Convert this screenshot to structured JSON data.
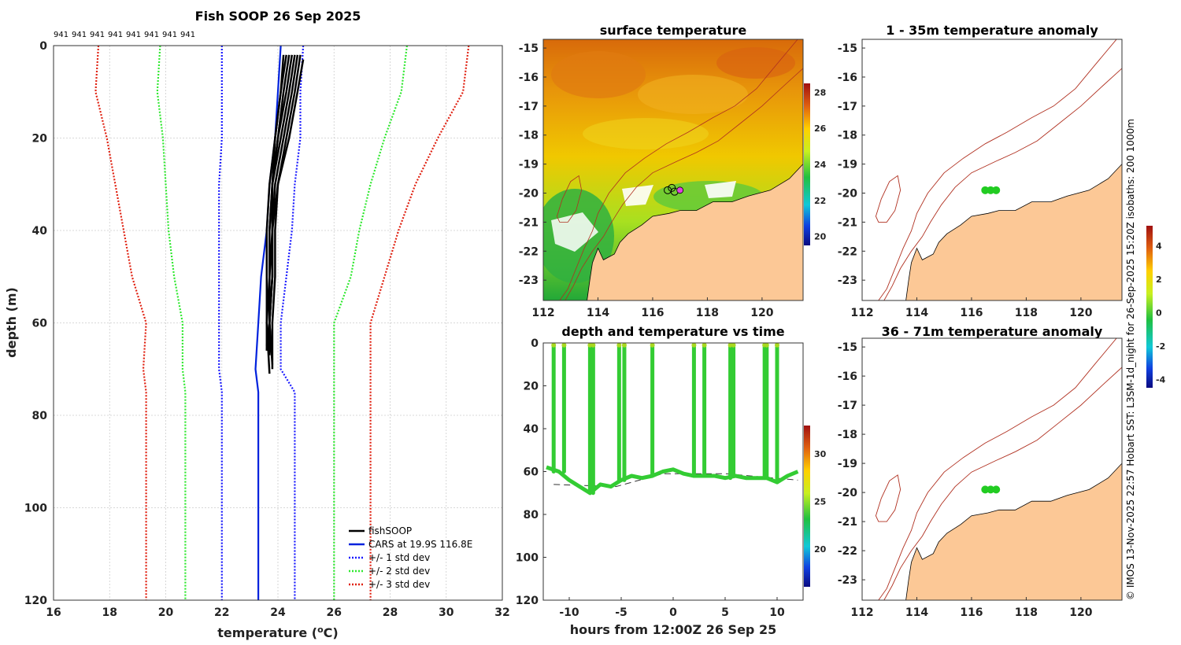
{
  "colors": {
    "fishsoop": "#000000",
    "cars": "#0022dd",
    "std1": "#1a1aff",
    "std2": "#2ee82e",
    "std3": "#e02010",
    "land": "#fcc896",
    "isobath": "#b03020",
    "anomaly_dot": "#22cc22",
    "track_dot": "#33cc33"
  },
  "credit": "© IMOS 13-Nov-2025 22:57 Hobart SST: L3SM-1d_night for 26-Sep-2025 15:20Z isobaths: 200  1000m",
  "chart_data": [
    {
      "id": "profile",
      "type": "line",
      "title": "Fish SOOP 26 Sep 2025",
      "xlabel_prefix": "temperature (",
      "xlabel_sup": "o",
      "xlabel_suffix": "C)",
      "ylabel": "depth (m)",
      "xlim": [
        16,
        32
      ],
      "ylim": [
        120,
        0
      ],
      "xticks": [
        "16",
        "18",
        "20",
        "22",
        "24",
        "26",
        "28",
        "30",
        "32"
      ],
      "yticks": [
        "0",
        "20",
        "40",
        "60",
        "80",
        "100",
        "120"
      ],
      "grid": true,
      "top_labels": [
        "941",
        "941",
        "941",
        "941",
        "941",
        "941",
        "941",
        "941"
      ],
      "legend": {
        "placement": "bottom-right",
        "entries": [
          "fishSOOP",
          "CARS at 19.9S 116.8E",
          "+/- 1 std dev",
          "+/- 2 std dev",
          "+/- 3 std dev"
        ]
      },
      "series": [
        {
          "name": "CARS",
          "depth": [
            0,
            10,
            20,
            30,
            40,
            50,
            60,
            70,
            75,
            80,
            90,
            100,
            110,
            120
          ],
          "temp": [
            24.1,
            24.0,
            23.9,
            23.7,
            23.6,
            23.4,
            23.3,
            23.2,
            23.3,
            23.3,
            23.3,
            23.3,
            23.3,
            23.3
          ]
        },
        {
          "name": "+1 std",
          "depth": [
            0,
            10,
            20,
            30,
            40,
            50,
            60,
            70,
            75,
            80,
            90,
            100,
            110,
            120
          ],
          "temp": [
            24.9,
            24.8,
            24.8,
            24.6,
            24.5,
            24.3,
            24.1,
            24.1,
            24.6,
            24.6,
            24.6,
            24.6,
            24.6,
            24.6
          ]
        },
        {
          "name": "-1 std",
          "depth": [
            0,
            10,
            20,
            30,
            40,
            50,
            60,
            70,
            75,
            80,
            90,
            100,
            110,
            120
          ],
          "temp": [
            22.0,
            22.0,
            22.0,
            21.9,
            21.9,
            21.9,
            21.9,
            21.9,
            22.0,
            22.0,
            22.0,
            22.0,
            22.0,
            22.0
          ]
        },
        {
          "name": "+2 std",
          "depth": [
            0,
            10,
            20,
            30,
            40,
            50,
            60,
            70,
            75,
            80,
            90,
            100,
            110,
            120
          ],
          "temp": [
            28.6,
            28.4,
            27.8,
            27.3,
            26.9,
            26.6,
            26.0,
            26.0,
            26.0,
            26.0,
            26.0,
            26.0,
            26.0,
            26.0
          ]
        },
        {
          "name": "-2 std",
          "depth": [
            0,
            10,
            20,
            30,
            40,
            50,
            60,
            70,
            75,
            80,
            90,
            100,
            110,
            120
          ],
          "temp": [
            19.8,
            19.7,
            19.9,
            20.0,
            20.1,
            20.3,
            20.6,
            20.6,
            20.7,
            20.7,
            20.7,
            20.7,
            20.7,
            20.7
          ]
        },
        {
          "name": "+3 std",
          "depth": [
            0,
            10,
            20,
            30,
            40,
            50,
            60,
            70,
            75,
            80,
            90,
            100,
            110,
            120
          ],
          "temp": [
            30.8,
            30.6,
            29.7,
            28.9,
            28.3,
            27.8,
            27.3,
            27.3,
            27.3,
            27.3,
            27.3,
            27.3,
            27.3,
            27.3
          ]
        },
        {
          "name": "-3 std",
          "depth": [
            0,
            10,
            20,
            30,
            40,
            50,
            60,
            70,
            75,
            80,
            90,
            100,
            110,
            120
          ],
          "temp": [
            17.6,
            17.5,
            17.9,
            18.2,
            18.5,
            18.8,
            19.3,
            19.2,
            19.3,
            19.3,
            19.3,
            19.3,
            19.3,
            19.3
          ]
        },
        {
          "name": "fishSOOP 1",
          "depth": [
            2,
            10,
            20,
            30,
            40,
            50,
            60,
            65
          ],
          "temp": [
            24.2,
            24.1,
            23.9,
            23.8,
            23.8,
            23.8,
            23.7,
            23.6
          ]
        },
        {
          "name": "fishSOOP 2",
          "depth": [
            2,
            10,
            20,
            30,
            40,
            50,
            60,
            68
          ],
          "temp": [
            24.5,
            24.3,
            24.0,
            23.8,
            23.7,
            23.7,
            23.7,
            23.8
          ]
        },
        {
          "name": "fishSOOP 3",
          "depth": [
            2,
            10,
            20,
            30,
            40,
            50,
            60,
            70
          ],
          "temp": [
            24.8,
            24.6,
            24.3,
            24.0,
            23.9,
            23.9,
            23.8,
            23.8
          ]
        },
        {
          "name": "fishSOOP 4",
          "depth": [
            2,
            10,
            20,
            30,
            40,
            50,
            60,
            66
          ],
          "temp": [
            24.6,
            24.4,
            24.1,
            23.8,
            23.8,
            23.7,
            23.6,
            23.6
          ]
        },
        {
          "name": "fishSOOP 5",
          "depth": [
            2,
            10,
            20,
            30,
            40,
            50,
            60,
            71
          ],
          "temp": [
            24.3,
            24.1,
            23.9,
            23.7,
            23.6,
            23.6,
            23.6,
            23.7
          ]
        },
        {
          "name": "fishSOOP 6",
          "depth": [
            3,
            10,
            20,
            30,
            40,
            50,
            60,
            67
          ],
          "temp": [
            24.9,
            24.7,
            24.4,
            24.0,
            23.8,
            23.8,
            23.7,
            23.7
          ]
        },
        {
          "name": "fishSOOP 7",
          "depth": [
            2,
            10,
            20,
            30,
            40,
            50,
            60,
            69
          ],
          "temp": [
            24.7,
            24.5,
            24.2,
            23.9,
            23.8,
            23.8,
            23.7,
            23.8
          ]
        },
        {
          "name": "fishSOOP 8",
          "depth": [
            2,
            10,
            20,
            30,
            40,
            50,
            60,
            66
          ],
          "temp": [
            24.4,
            24.2,
            24.0,
            23.8,
            23.7,
            23.7,
            23.7,
            23.6
          ]
        }
      ]
    },
    {
      "id": "sst",
      "type": "heatmap",
      "title": "surface temperature",
      "xlim": [
        112,
        121.5
      ],
      "ylim": [
        -23.7,
        -14.7
      ],
      "xticks": [
        "112",
        "114",
        "116",
        "118",
        "120"
      ],
      "yticks": [
        "-15",
        "-16",
        "-17",
        "-18",
        "-19",
        "-20",
        "-21",
        "-22",
        "-23"
      ],
      "colorbar": {
        "min": 19.5,
        "max": 28.5,
        "ticks": [
          "20",
          "22",
          "24",
          "26",
          "28"
        ]
      },
      "position": {
        "lon": 116.8,
        "lat": -19.9
      }
    },
    {
      "id": "timeseries",
      "type": "scatter",
      "title": "depth and temperature vs time",
      "xlabel": "hours from 12:00Z 26 Sep 25",
      "xlim": [
        -12.5,
        12.5
      ],
      "ylim": [
        120,
        0
      ],
      "xticks": [
        "-10",
        "-5",
        "0",
        "5",
        "10"
      ],
      "yticks": [
        "0",
        "20",
        "40",
        "60",
        "80",
        "100",
        "120"
      ],
      "colorbar": {
        "min": 16,
        "max": 33,
        "ticks": [
          "20",
          "25",
          "30"
        ]
      },
      "casts": [
        -11.5,
        -10.5,
        -8.0,
        -7.7,
        -5.2,
        -4.7,
        -2.0,
        2.0,
        3.0,
        5.5,
        5.8,
        8.8,
        9.0,
        10.0
      ],
      "seafloor": [
        {
          "t": -11.5,
          "d": 66
        },
        {
          "t": -5.5,
          "d": 67
        },
        {
          "t": -1,
          "d": 61
        },
        {
          "t": 5,
          "d": 61
        },
        {
          "t": 12,
          "d": 64
        }
      ],
      "bottom_track": [
        {
          "t": -12.2,
          "d": 58
        },
        {
          "t": -11,
          "d": 60
        },
        {
          "t": -10,
          "d": 64
        },
        {
          "t": -9,
          "d": 67
        },
        {
          "t": -8,
          "d": 70
        },
        {
          "t": -7,
          "d": 66
        },
        {
          "t": -6,
          "d": 67
        },
        {
          "t": -5,
          "d": 64
        },
        {
          "t": -4,
          "d": 62
        },
        {
          "t": -3,
          "d": 63
        },
        {
          "t": -2,
          "d": 62
        },
        {
          "t": -1,
          "d": 60
        },
        {
          "t": 0,
          "d": 59
        },
        {
          "t": 1,
          "d": 61
        },
        {
          "t": 2,
          "d": 62
        },
        {
          "t": 3,
          "d": 62
        },
        {
          "t": 4,
          "d": 62
        },
        {
          "t": 5,
          "d": 63
        },
        {
          "t": 6,
          "d": 62
        },
        {
          "t": 7,
          "d": 63
        },
        {
          "t": 8,
          "d": 63
        },
        {
          "t": 9,
          "d": 63
        },
        {
          "t": 10,
          "d": 65
        },
        {
          "t": 11,
          "d": 62
        },
        {
          "t": 12,
          "d": 60
        }
      ]
    },
    {
      "id": "anom1",
      "type": "scatter",
      "title": "1 - 35m temperature anomaly",
      "xlim": [
        112,
        121.5
      ],
      "ylim": [
        -23.7,
        -14.7
      ],
      "xticks": [
        "112",
        "114",
        "116",
        "118",
        "120"
      ],
      "yticks": [
        "-15",
        "-16",
        "-17",
        "-18",
        "-19",
        "-20",
        "-21",
        "-22",
        "-23"
      ],
      "points": [
        {
          "lon": 116.5,
          "lat": -19.9,
          "anomaly": 0.3
        },
        {
          "lon": 116.7,
          "lat": -19.9,
          "anomaly": 0.2
        },
        {
          "lon": 116.9,
          "lat": -19.9,
          "anomaly": 0.3
        }
      ],
      "colorbar": {
        "min": -4.5,
        "max": 5.2,
        "ticks": [
          "4",
          "2",
          "0",
          "-2",
          "-4"
        ]
      }
    },
    {
      "id": "anom2",
      "type": "scatter",
      "title": "36 - 71m temperature anomaly",
      "xlim": [
        112,
        121.5
      ],
      "ylim": [
        -23.7,
        -14.7
      ],
      "xticks": [
        "112",
        "114",
        "116",
        "118",
        "120"
      ],
      "yticks": [
        "-15",
        "-16",
        "-17",
        "-18",
        "-19",
        "-20",
        "-21",
        "-22",
        "-23"
      ],
      "points": [
        {
          "lon": 116.5,
          "lat": -19.9,
          "anomaly": 0.2
        },
        {
          "lon": 116.7,
          "lat": -19.9,
          "anomaly": 0.3
        },
        {
          "lon": 116.9,
          "lat": -19.9,
          "anomaly": 0.2
        }
      ]
    }
  ]
}
